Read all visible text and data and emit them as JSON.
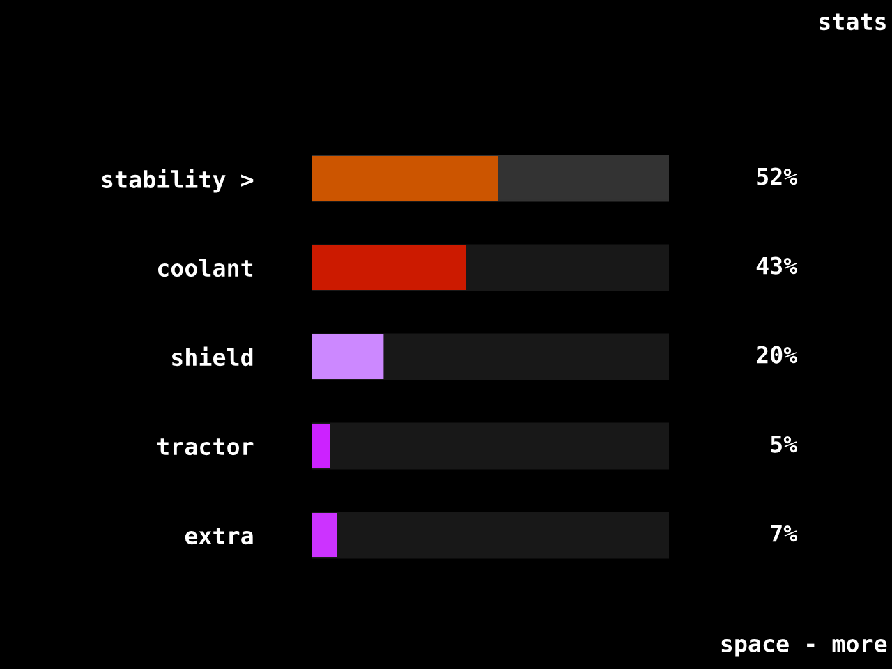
{
  "chart_data": {
    "type": "bar",
    "orientation": "horizontal",
    "title": "stats",
    "categories": [
      "stability >",
      "coolant",
      "shield",
      "tractor",
      "extra"
    ],
    "values": [
      52,
      43,
      20,
      5,
      7
    ],
    "colors": [
      "#cc5500",
      "#cc1a00",
      "#cc88ff",
      "#cc22ff",
      "#cc33ff"
    ],
    "value_labels": [
      "52%",
      "43%",
      "20%",
      "5%",
      "7%"
    ],
    "xlim": [
      0,
      100
    ],
    "tick_labels": "y",
    "annotations": [
      "space - more"
    ]
  }
}
